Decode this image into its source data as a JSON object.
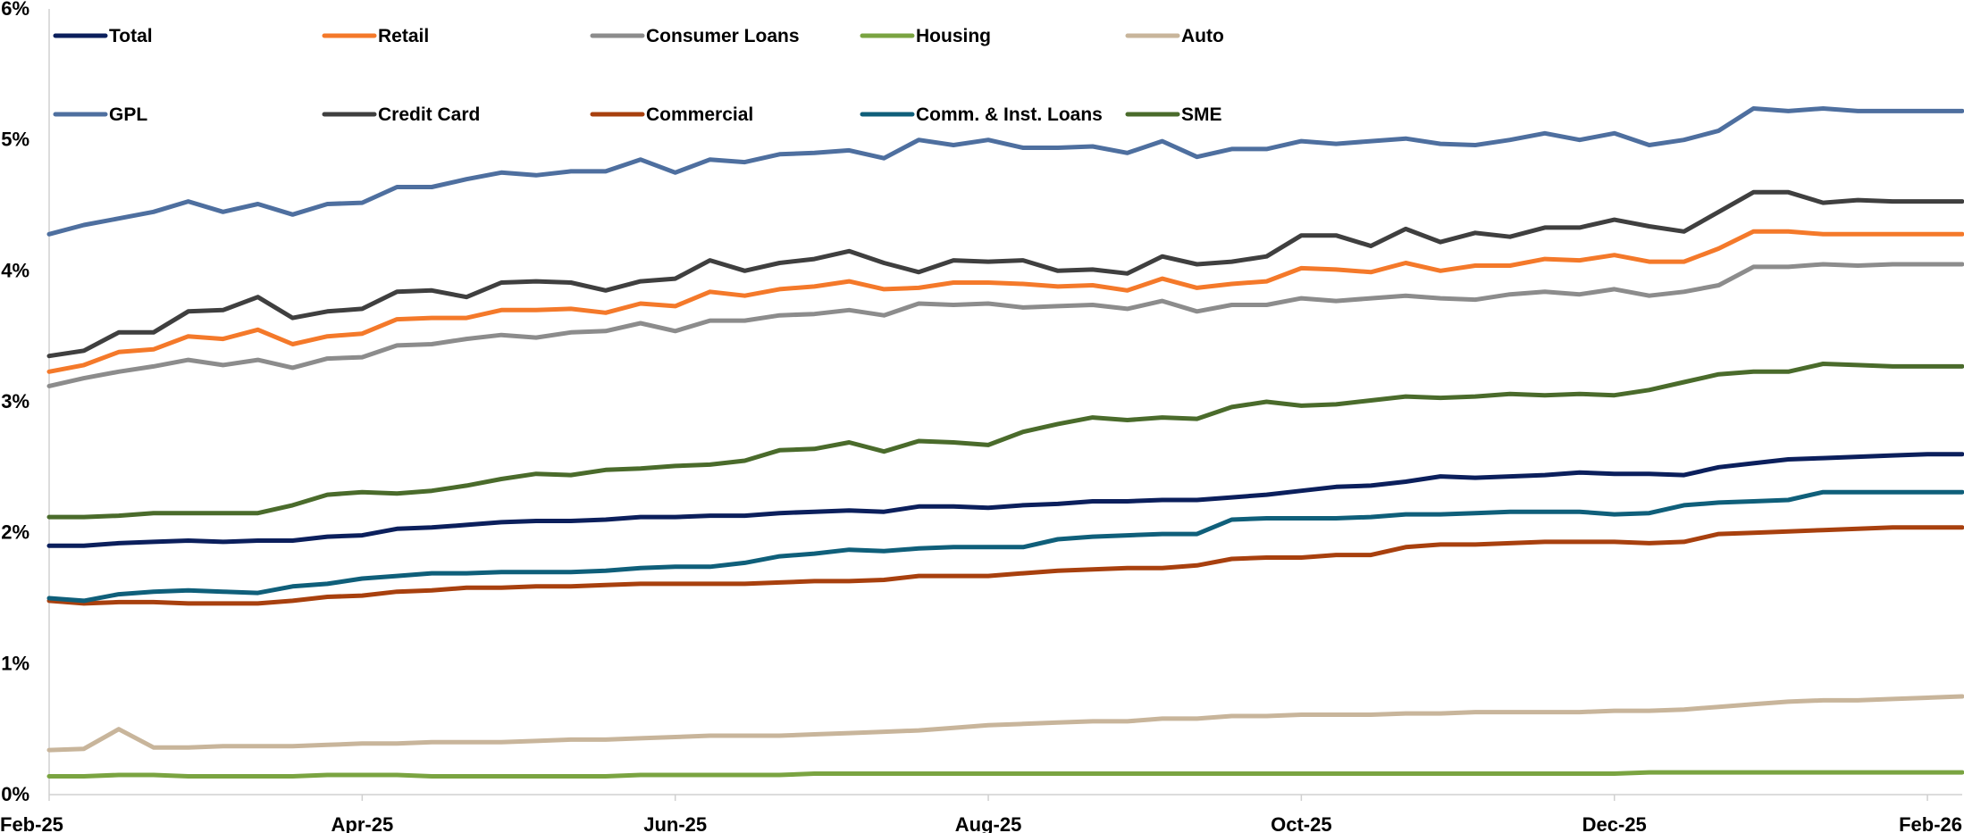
{
  "chart_data": {
    "type": "line",
    "title": "",
    "xlabel": "",
    "ylabel": "",
    "ylim": [
      0,
      6
    ],
    "y_ticks": [
      "0%",
      "1%",
      "2%",
      "3%",
      "4%",
      "5%",
      "6%"
    ],
    "x_tick_labels": [
      {
        "label": "Feb-25",
        "index": 0
      },
      {
        "label": "Apr-25",
        "index": 9
      },
      {
        "label": "Jun-25",
        "index": 18
      },
      {
        "label": "Aug-25",
        "index": 27
      },
      {
        "label": "Oct-25",
        "index": 36
      },
      {
        "label": "Dec-25",
        "index": 45
      },
      {
        "label": "Feb-26",
        "index": 54
      }
    ],
    "grid": false,
    "legend_position": "top-left",
    "legend_columns": 5,
    "series": [
      {
        "name": "Total",
        "color": "#0b1f5c",
        "values": [
          1.9,
          1.9,
          1.92,
          1.93,
          1.94,
          1.93,
          1.94,
          1.94,
          1.97,
          1.98,
          2.03,
          2.04,
          2.06,
          2.08,
          2.09,
          2.09,
          2.1,
          2.12,
          2.12,
          2.13,
          2.13,
          2.15,
          2.16,
          2.17,
          2.16,
          2.2,
          2.2,
          2.19,
          2.21,
          2.22,
          2.24,
          2.24,
          2.25,
          2.25,
          2.27,
          2.29,
          2.32,
          2.35,
          2.36,
          2.39,
          2.43,
          2.42,
          2.43,
          2.44,
          2.46,
          2.45,
          2.45,
          2.44,
          2.5,
          2.53,
          2.56,
          2.57,
          2.58,
          2.59,
          2.6,
          2.6
        ]
      },
      {
        "name": "Retail",
        "color": "#f4792a",
        "values": [
          3.23,
          3.28,
          3.38,
          3.4,
          3.5,
          3.48,
          3.55,
          3.44,
          3.5,
          3.52,
          3.63,
          3.64,
          3.64,
          3.7,
          3.7,
          3.71,
          3.68,
          3.75,
          3.73,
          3.84,
          3.81,
          3.86,
          3.88,
          3.92,
          3.86,
          3.87,
          3.91,
          3.91,
          3.9,
          3.88,
          3.89,
          3.85,
          3.94,
          3.87,
          3.9,
          3.92,
          4.02,
          4.01,
          3.99,
          4.06,
          4.0,
          4.04,
          4.04,
          4.09,
          4.08,
          4.12,
          4.07,
          4.07,
          4.17,
          4.3,
          4.3,
          4.28,
          4.28,
          4.28,
          4.28,
          4.28
        ]
      },
      {
        "name": "Consumer Loans",
        "color": "#8c8c8c",
        "values": [
          3.12,
          3.18,
          3.23,
          3.27,
          3.32,
          3.28,
          3.32,
          3.26,
          3.33,
          3.34,
          3.43,
          3.44,
          3.48,
          3.51,
          3.49,
          3.53,
          3.54,
          3.6,
          3.54,
          3.62,
          3.62,
          3.66,
          3.67,
          3.7,
          3.66,
          3.75,
          3.74,
          3.75,
          3.72,
          3.73,
          3.74,
          3.71,
          3.77,
          3.69,
          3.74,
          3.74,
          3.79,
          3.77,
          3.79,
          3.81,
          3.79,
          3.78,
          3.82,
          3.84,
          3.82,
          3.86,
          3.81,
          3.84,
          3.89,
          4.03,
          4.03,
          4.05,
          4.04,
          4.05,
          4.05,
          4.05
        ]
      },
      {
        "name": "Housing",
        "color": "#7aa441",
        "values": [
          0.14,
          0.14,
          0.15,
          0.15,
          0.14,
          0.14,
          0.14,
          0.14,
          0.15,
          0.15,
          0.15,
          0.14,
          0.14,
          0.14,
          0.14,
          0.14,
          0.14,
          0.15,
          0.15,
          0.15,
          0.15,
          0.15,
          0.16,
          0.16,
          0.16,
          0.16,
          0.16,
          0.16,
          0.16,
          0.16,
          0.16,
          0.16,
          0.16,
          0.16,
          0.16,
          0.16,
          0.16,
          0.16,
          0.16,
          0.16,
          0.16,
          0.16,
          0.16,
          0.16,
          0.16,
          0.16,
          0.17,
          0.17,
          0.17,
          0.17,
          0.17,
          0.17,
          0.17,
          0.17,
          0.17,
          0.17
        ]
      },
      {
        "name": "Auto",
        "color": "#c8b59b",
        "values": [
          0.34,
          0.35,
          0.5,
          0.36,
          0.36,
          0.37,
          0.37,
          0.37,
          0.38,
          0.39,
          0.39,
          0.4,
          0.4,
          0.4,
          0.41,
          0.42,
          0.42,
          0.43,
          0.44,
          0.45,
          0.45,
          0.45,
          0.46,
          0.47,
          0.48,
          0.49,
          0.51,
          0.53,
          0.54,
          0.55,
          0.56,
          0.56,
          0.58,
          0.58,
          0.6,
          0.6,
          0.61,
          0.61,
          0.61,
          0.62,
          0.62,
          0.63,
          0.63,
          0.63,
          0.63,
          0.64,
          0.64,
          0.65,
          0.67,
          0.69,
          0.71,
          0.72,
          0.72,
          0.73,
          0.74,
          0.75
        ]
      },
      {
        "name": "GPL",
        "color": "#4e6f9f",
        "values": [
          4.28,
          4.35,
          4.4,
          4.45,
          4.53,
          4.45,
          4.51,
          4.43,
          4.51,
          4.52,
          4.64,
          4.64,
          4.7,
          4.75,
          4.73,
          4.76,
          4.76,
          4.85,
          4.75,
          4.85,
          4.83,
          4.89,
          4.9,
          4.92,
          4.86,
          5.0,
          4.96,
          5.0,
          4.94,
          4.94,
          4.95,
          4.9,
          4.99,
          4.87,
          4.93,
          4.93,
          4.99,
          4.97,
          4.99,
          5.01,
          4.97,
          4.96,
          5.0,
          5.05,
          5.0,
          5.05,
          4.96,
          5.0,
          5.07,
          5.24,
          5.22,
          5.24,
          5.22,
          5.22,
          5.22,
          5.22
        ]
      },
      {
        "name": "Credit Card",
        "color": "#3f3f3f",
        "values": [
          3.35,
          3.39,
          3.53,
          3.53,
          3.69,
          3.7,
          3.8,
          3.64,
          3.69,
          3.71,
          3.84,
          3.85,
          3.8,
          3.91,
          3.92,
          3.91,
          3.85,
          3.92,
          3.94,
          4.08,
          4.0,
          4.06,
          4.09,
          4.15,
          4.06,
          3.99,
          4.08,
          4.07,
          4.08,
          4.0,
          4.01,
          3.98,
          4.11,
          4.05,
          4.07,
          4.11,
          4.27,
          4.27,
          4.19,
          4.32,
          4.22,
          4.29,
          4.26,
          4.33,
          4.33,
          4.39,
          4.34,
          4.3,
          4.45,
          4.6,
          4.6,
          4.52,
          4.54,
          4.53,
          4.53,
          4.53
        ]
      },
      {
        "name": "Commercial",
        "color": "#a8400e",
        "values": [
          1.48,
          1.46,
          1.47,
          1.47,
          1.46,
          1.46,
          1.46,
          1.48,
          1.51,
          1.52,
          1.55,
          1.56,
          1.58,
          1.58,
          1.59,
          1.59,
          1.6,
          1.61,
          1.61,
          1.61,
          1.61,
          1.62,
          1.63,
          1.63,
          1.64,
          1.67,
          1.67,
          1.67,
          1.69,
          1.71,
          1.72,
          1.73,
          1.73,
          1.75,
          1.8,
          1.81,
          1.81,
          1.83,
          1.83,
          1.89,
          1.91,
          1.91,
          1.92,
          1.93,
          1.93,
          1.93,
          1.92,
          1.93,
          1.99,
          2.0,
          2.01,
          2.02,
          2.03,
          2.04,
          2.04,
          2.04
        ]
      },
      {
        "name": "Comm. & Inst. Loans",
        "color": "#0f5f7a",
        "values": [
          1.5,
          1.48,
          1.53,
          1.55,
          1.56,
          1.55,
          1.54,
          1.59,
          1.61,
          1.65,
          1.67,
          1.69,
          1.69,
          1.7,
          1.7,
          1.7,
          1.71,
          1.73,
          1.74,
          1.74,
          1.77,
          1.82,
          1.84,
          1.87,
          1.86,
          1.88,
          1.89,
          1.89,
          1.89,
          1.95,
          1.97,
          1.98,
          1.99,
          1.99,
          2.1,
          2.11,
          2.11,
          2.11,
          2.12,
          2.14,
          2.14,
          2.15,
          2.16,
          2.16,
          2.16,
          2.14,
          2.15,
          2.21,
          2.23,
          2.24,
          2.25,
          2.31,
          2.31,
          2.31,
          2.31,
          2.31
        ]
      },
      {
        "name": "SME",
        "color": "#4a6b2b",
        "values": [
          2.12,
          2.12,
          2.13,
          2.15,
          2.15,
          2.15,
          2.15,
          2.21,
          2.29,
          2.31,
          2.3,
          2.32,
          2.36,
          2.41,
          2.45,
          2.44,
          2.48,
          2.49,
          2.51,
          2.52,
          2.55,
          2.63,
          2.64,
          2.69,
          2.62,
          2.7,
          2.69,
          2.67,
          2.77,
          2.83,
          2.88,
          2.86,
          2.88,
          2.87,
          2.96,
          3.0,
          2.97,
          2.98,
          3.01,
          3.04,
          3.03,
          3.04,
          3.06,
          3.05,
          3.06,
          3.05,
          3.09,
          3.15,
          3.21,
          3.23,
          3.23,
          3.29,
          3.28,
          3.27,
          3.27,
          3.27
        ]
      }
    ]
  }
}
